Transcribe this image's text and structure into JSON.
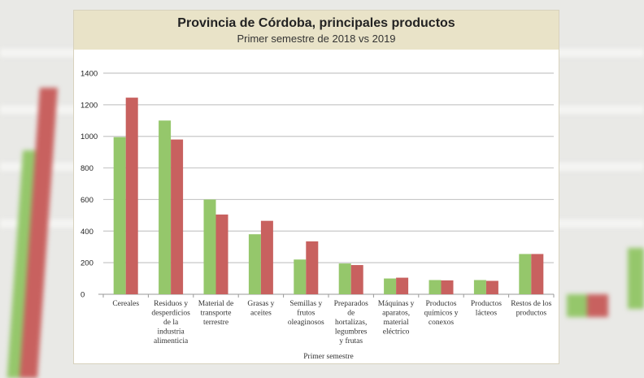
{
  "colors": {
    "s2018": "#95c76b",
    "s2019": "#c8615f",
    "header_bg": "#e9e3c8",
    "grid": "#c8c8c8"
  },
  "chart_data": {
    "type": "bar",
    "title": "Provincia de Córdoba, principales productos",
    "subtitle": "Primer semestre de 2018 vs 2019",
    "xlabel": "Primer semestre",
    "ylabel": "",
    "ylim": [
      0,
      1400
    ],
    "yticks": [
      "0",
      "200",
      "400",
      "600",
      "800",
      "1000",
      "1200",
      "1400"
    ],
    "grid": true,
    "legend": "none",
    "categories": [
      [
        "Cereales"
      ],
      [
        "Residuos y",
        "desperdicios",
        "de la",
        "industria",
        "alimenticia"
      ],
      [
        "Material de",
        "transporte",
        "terrestre"
      ],
      [
        "Grasas y",
        "aceites"
      ],
      [
        "Semillas y",
        "frutos",
        "oleaginosos"
      ],
      [
        "Preparados",
        "de",
        "hortalizas,",
        "legumbres",
        "y frutas"
      ],
      [
        "Máquinas y",
        "aparatos,",
        "material",
        "eléctrico"
      ],
      [
        "Productos",
        "químicos y",
        "conexos"
      ],
      [
        "Productos",
        "lácteos"
      ],
      [
        "Restos de los",
        "productos"
      ]
    ],
    "series": [
      {
        "name": "2018",
        "values": [
          995,
          1100,
          600,
          380,
          220,
          195,
          100,
          90,
          90,
          255
        ]
      },
      {
        "name": "2019",
        "values": [
          1245,
          980,
          505,
          465,
          335,
          185,
          105,
          88,
          85,
          255
        ]
      }
    ]
  }
}
